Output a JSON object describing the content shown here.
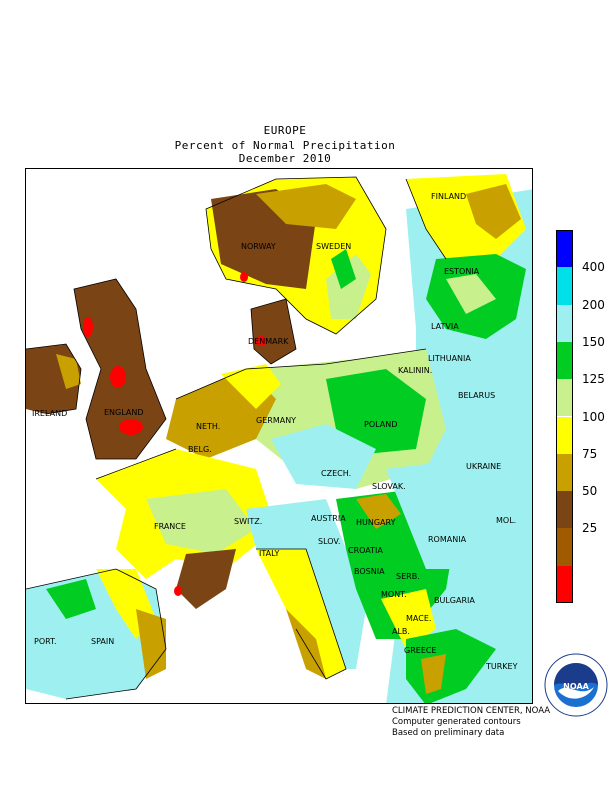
{
  "header": {
    "region": "EUROPE",
    "title": "Percent of Normal Precipitation",
    "period": "December 2010"
  },
  "legend": {
    "bins": [
      {
        "color": "#ff0000",
        "label": ""
      },
      {
        "color": "#a05a00",
        "label": "25"
      },
      {
        "color": "#7a4414",
        "label": "50"
      },
      {
        "color": "#c8a000",
        "label": "75"
      },
      {
        "color": "#ffff00",
        "label": "100"
      },
      {
        "color": "#c8f08c",
        "label": "125"
      },
      {
        "color": "#00cc22",
        "label": "150"
      },
      {
        "color": "#9ef0f0",
        "label": "200"
      },
      {
        "color": "#00e0e8",
        "label": "400"
      },
      {
        "color": "#0000ff",
        "label": ""
      }
    ]
  },
  "map": {
    "countries": [
      "FINLAND",
      "NORWAY",
      "SWEDEN",
      "ESTONIA",
      "LATVIA",
      "DENMARK",
      "LITHUANIA",
      "KALININ.",
      "BELARUS",
      "IRELAND",
      "ENGLAND",
      "NETH.",
      "BELG.",
      "GERMANY",
      "POLAND",
      "UKRAINE",
      "CZECH.",
      "SLOVAK.",
      "FRANCE",
      "SWITZ.",
      "AUSTRIA",
      "HUNGARY",
      "MOL.",
      "ROMANIA",
      "SLOV.",
      "CROATIA",
      "ITALY",
      "BOSNIA",
      "SERB.",
      "MONT.",
      "BULGARIA",
      "PORT.",
      "SPAIN",
      "ALB.",
      "MACE.",
      "GREECE",
      "TURKEY"
    ]
  },
  "credits": {
    "line1": "CLIMATE PREDICTION CENTER, NOAA",
    "line2": "Computer generated contours",
    "line3": "Based on preliminary data"
  },
  "logo": {
    "text": "NOAA",
    "ring_top": "NATIONAL OCEANIC AND ATMOSPHERIC ADMINISTRATION",
    "ring_bottom": "U.S. DEPARTMENT OF COMMERCE"
  }
}
